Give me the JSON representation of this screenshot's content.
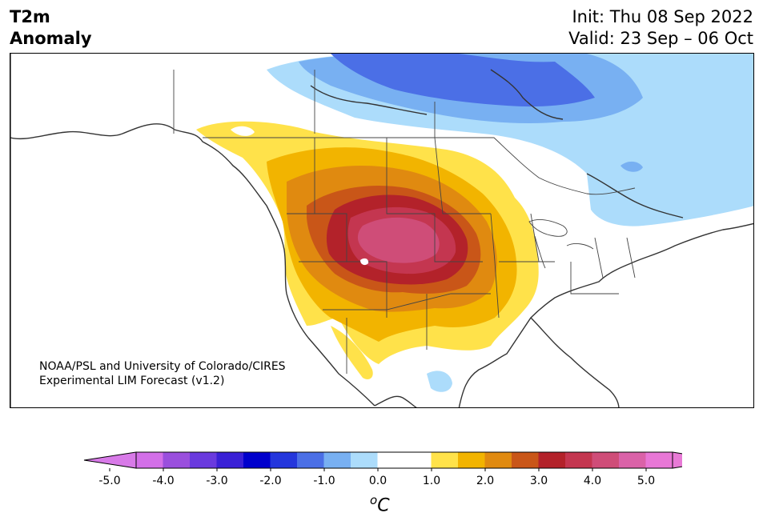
{
  "header": {
    "title_line1": "T2m",
    "title_line2": "Anomaly",
    "init": "Init: Thu 08 Sep 2022",
    "valid": "Valid: 23 Sep – 06 Oct"
  },
  "credit": {
    "line1": "NOAA/PSL and University of Colorado/CIRES",
    "line2": "Experimental LIM Forecast (v1.2)"
  },
  "colorbar": {
    "unit": "°C",
    "unit_base": "C",
    "unit_sup": "o",
    "ticks": [
      "-5.0",
      "-4.0",
      "-3.0",
      "-2.0",
      "-1.0",
      "0.0",
      "1.0",
      "2.0",
      "3.0",
      "4.0",
      "5.0"
    ],
    "colors": [
      "#d36fe8",
      "#9a4fdd",
      "#6a3ade",
      "#3a20d6",
      "#0000cc",
      "#2436dc",
      "#4b6fe6",
      "#78b0f2",
      "#acdcfb",
      "#ffffff",
      "#ffffff",
      "#ffe24a",
      "#f2b400",
      "#e08a10",
      "#c95618",
      "#b3222a",
      "#c43650",
      "#cf4d78",
      "#da62a8",
      "#e877d6"
    ],
    "under_color": "#d87ae8",
    "over_color": "#e87ad6"
  }
}
